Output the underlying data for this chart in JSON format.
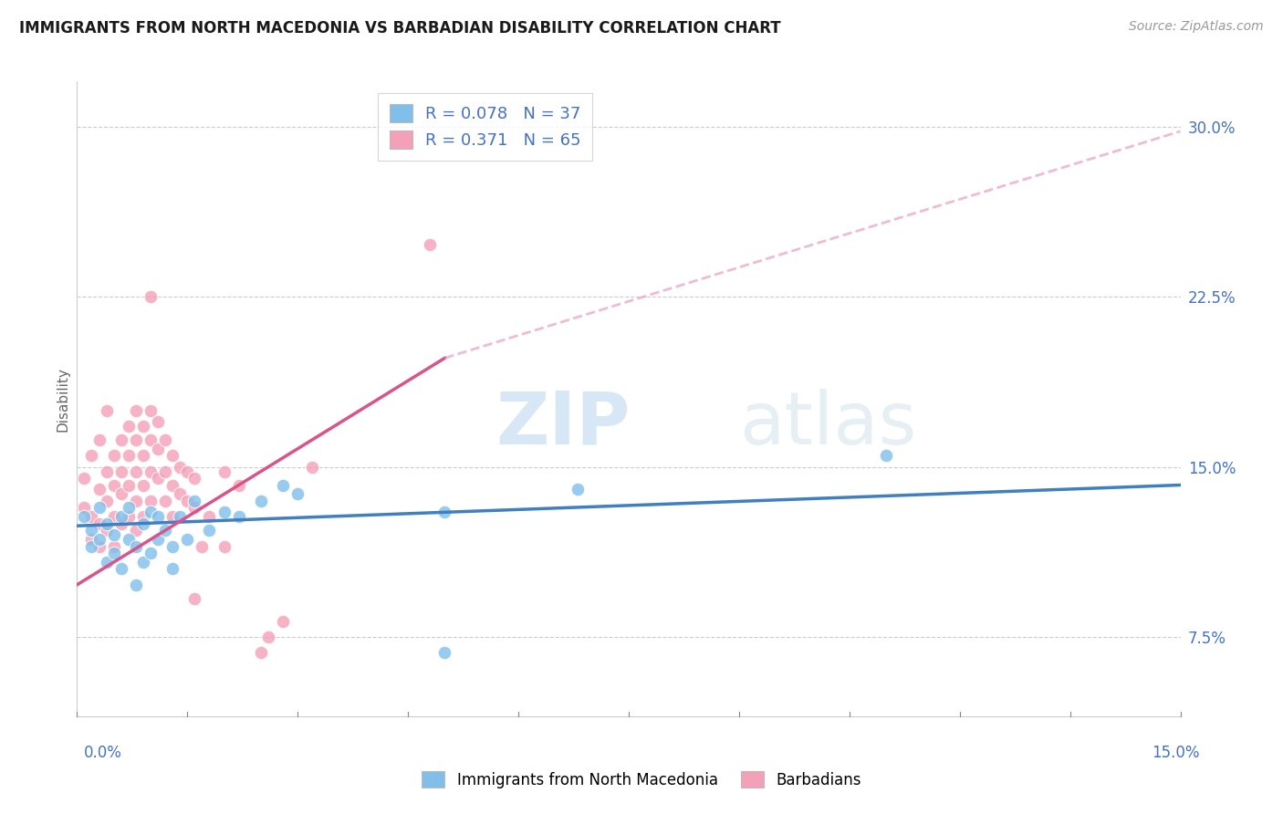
{
  "title": "IMMIGRANTS FROM NORTH MACEDONIA VS BARBADIAN DISABILITY CORRELATION CHART",
  "source": "Source: ZipAtlas.com",
  "ylabel": "Disability",
  "yticks": [
    0.075,
    0.15,
    0.225,
    0.3
  ],
  "ytick_labels": [
    "7.5%",
    "15.0%",
    "22.5%",
    "30.0%"
  ],
  "xlim": [
    0.0,
    0.15
  ],
  "ylim": [
    0.04,
    0.32
  ],
  "r_blue": 0.078,
  "n_blue": 37,
  "r_pink": 0.371,
  "n_pink": 65,
  "watermark": "ZIPatlas",
  "blue_color": "#7fbfea",
  "pink_color": "#f4a0b8",
  "blue_line_color": "#4080c0",
  "pink_line_color": "#d9548a",
  "pink_dash_color": "#e8a0c0",
  "blue_scatter": [
    [
      0.001,
      0.128
    ],
    [
      0.002,
      0.122
    ],
    [
      0.002,
      0.115
    ],
    [
      0.003,
      0.132
    ],
    [
      0.003,
      0.118
    ],
    [
      0.004,
      0.125
    ],
    [
      0.004,
      0.108
    ],
    [
      0.005,
      0.12
    ],
    [
      0.005,
      0.112
    ],
    [
      0.006,
      0.128
    ],
    [
      0.006,
      0.105
    ],
    [
      0.007,
      0.132
    ],
    [
      0.007,
      0.118
    ],
    [
      0.008,
      0.115
    ],
    [
      0.008,
      0.098
    ],
    [
      0.009,
      0.125
    ],
    [
      0.009,
      0.108
    ],
    [
      0.01,
      0.13
    ],
    [
      0.01,
      0.112
    ],
    [
      0.011,
      0.118
    ],
    [
      0.011,
      0.128
    ],
    [
      0.012,
      0.122
    ],
    [
      0.013,
      0.115
    ],
    [
      0.013,
      0.105
    ],
    [
      0.014,
      0.128
    ],
    [
      0.015,
      0.118
    ],
    [
      0.016,
      0.135
    ],
    [
      0.018,
      0.122
    ],
    [
      0.02,
      0.13
    ],
    [
      0.022,
      0.128
    ],
    [
      0.025,
      0.135
    ],
    [
      0.028,
      0.142
    ],
    [
      0.03,
      0.138
    ],
    [
      0.05,
      0.13
    ],
    [
      0.05,
      0.068
    ],
    [
      0.068,
      0.14
    ],
    [
      0.11,
      0.155
    ]
  ],
  "pink_scatter": [
    [
      0.001,
      0.132
    ],
    [
      0.001,
      0.145
    ],
    [
      0.002,
      0.128
    ],
    [
      0.002,
      0.118
    ],
    [
      0.002,
      0.155
    ],
    [
      0.003,
      0.14
    ],
    [
      0.003,
      0.125
    ],
    [
      0.003,
      0.115
    ],
    [
      0.003,
      0.162
    ],
    [
      0.004,
      0.148
    ],
    [
      0.004,
      0.135
    ],
    [
      0.004,
      0.122
    ],
    [
      0.004,
      0.175
    ],
    [
      0.005,
      0.155
    ],
    [
      0.005,
      0.142
    ],
    [
      0.005,
      0.128
    ],
    [
      0.005,
      0.115
    ],
    [
      0.006,
      0.162
    ],
    [
      0.006,
      0.148
    ],
    [
      0.006,
      0.138
    ],
    [
      0.006,
      0.125
    ],
    [
      0.007,
      0.168
    ],
    [
      0.007,
      0.155
    ],
    [
      0.007,
      0.142
    ],
    [
      0.007,
      0.128
    ],
    [
      0.008,
      0.175
    ],
    [
      0.008,
      0.162
    ],
    [
      0.008,
      0.148
    ],
    [
      0.008,
      0.135
    ],
    [
      0.008,
      0.122
    ],
    [
      0.009,
      0.168
    ],
    [
      0.009,
      0.155
    ],
    [
      0.009,
      0.142
    ],
    [
      0.009,
      0.128
    ],
    [
      0.01,
      0.175
    ],
    [
      0.01,
      0.162
    ],
    [
      0.01,
      0.148
    ],
    [
      0.01,
      0.135
    ],
    [
      0.01,
      0.225
    ],
    [
      0.011,
      0.17
    ],
    [
      0.011,
      0.158
    ],
    [
      0.011,
      0.145
    ],
    [
      0.012,
      0.162
    ],
    [
      0.012,
      0.148
    ],
    [
      0.012,
      0.135
    ],
    [
      0.013,
      0.155
    ],
    [
      0.013,
      0.142
    ],
    [
      0.013,
      0.128
    ],
    [
      0.014,
      0.15
    ],
    [
      0.014,
      0.138
    ],
    [
      0.015,
      0.148
    ],
    [
      0.015,
      0.135
    ],
    [
      0.016,
      0.145
    ],
    [
      0.016,
      0.132
    ],
    [
      0.016,
      0.092
    ],
    [
      0.017,
      0.115
    ],
    [
      0.018,
      0.128
    ],
    [
      0.02,
      0.148
    ],
    [
      0.02,
      0.115
    ],
    [
      0.022,
      0.142
    ],
    [
      0.025,
      0.068
    ],
    [
      0.026,
      0.075
    ],
    [
      0.028,
      0.082
    ],
    [
      0.032,
      0.15
    ],
    [
      0.048,
      0.248
    ]
  ],
  "blue_line": [
    [
      0.0,
      0.124
    ],
    [
      0.15,
      0.142
    ]
  ],
  "pink_line_solid": [
    [
      0.0,
      0.098
    ],
    [
      0.05,
      0.198
    ]
  ],
  "pink_line_dash": [
    [
      0.05,
      0.198
    ],
    [
      0.15,
      0.298
    ]
  ]
}
